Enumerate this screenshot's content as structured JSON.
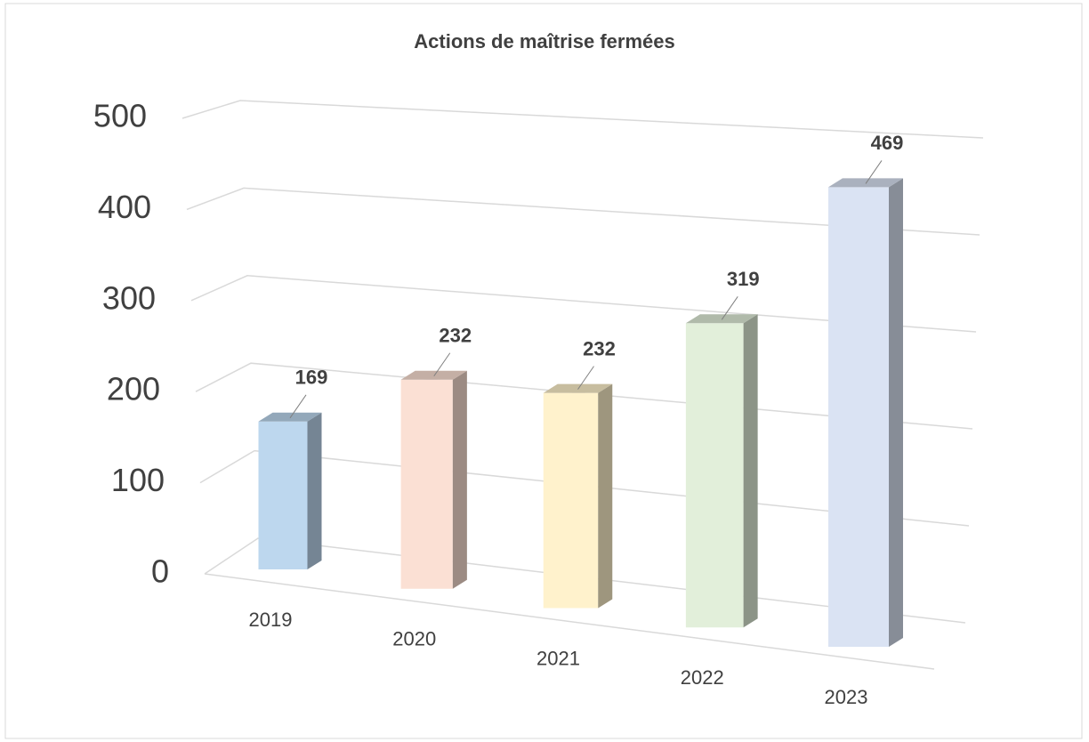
{
  "chart_data": {
    "type": "bar",
    "title": "Actions de maîtrise fermées",
    "categories": [
      "2019",
      "2020",
      "2021",
      "2022",
      "2023"
    ],
    "values": [
      169,
      232,
      232,
      319,
      469
    ],
    "colors": [
      "#bdd7ee",
      "#fbe0d4",
      "#fff2cc",
      "#e2efda",
      "#dae3f3"
    ],
    "ylim": [
      0,
      500
    ],
    "yticks": [
      0,
      100,
      200,
      300,
      400,
      500
    ],
    "grid": true
  }
}
